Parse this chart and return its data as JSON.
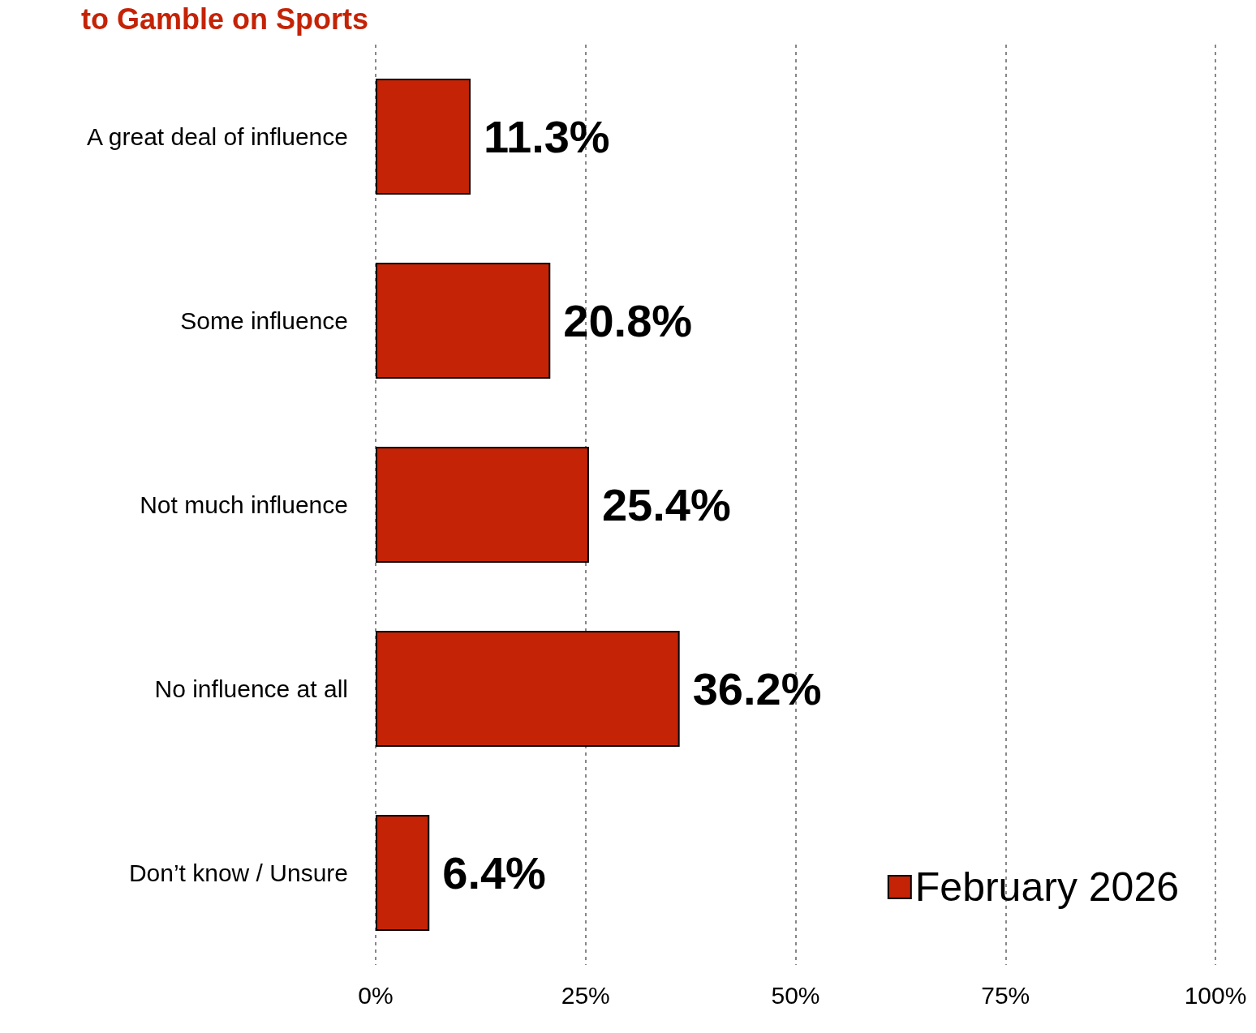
{
  "chart_data": {
    "type": "bar",
    "orientation": "horizontal",
    "title": "to Gamble on Sports",
    "categories": [
      "A great deal of influence",
      "Some influence",
      "Not much influence",
      "No influence at all",
      "Don’t know / Unsure"
    ],
    "series": [
      {
        "name": "February 2026",
        "color": "#c42306",
        "values": [
          11.3,
          20.8,
          25.4,
          36.2,
          6.4
        ],
        "value_labels": [
          "11.3%",
          "20.8%",
          "25.4%",
          "36.2%",
          "6.4%"
        ]
      }
    ],
    "xlim": [
      0,
      100
    ],
    "xticks": [
      {
        "value": 0,
        "label": "0%"
      },
      {
        "value": 25,
        "label": "25%"
      },
      {
        "value": 50,
        "label": "50%"
      },
      {
        "value": 75,
        "label": "75%"
      },
      {
        "value": 100,
        "label": "100%"
      }
    ],
    "grid": "x",
    "legend": "bottom right"
  }
}
